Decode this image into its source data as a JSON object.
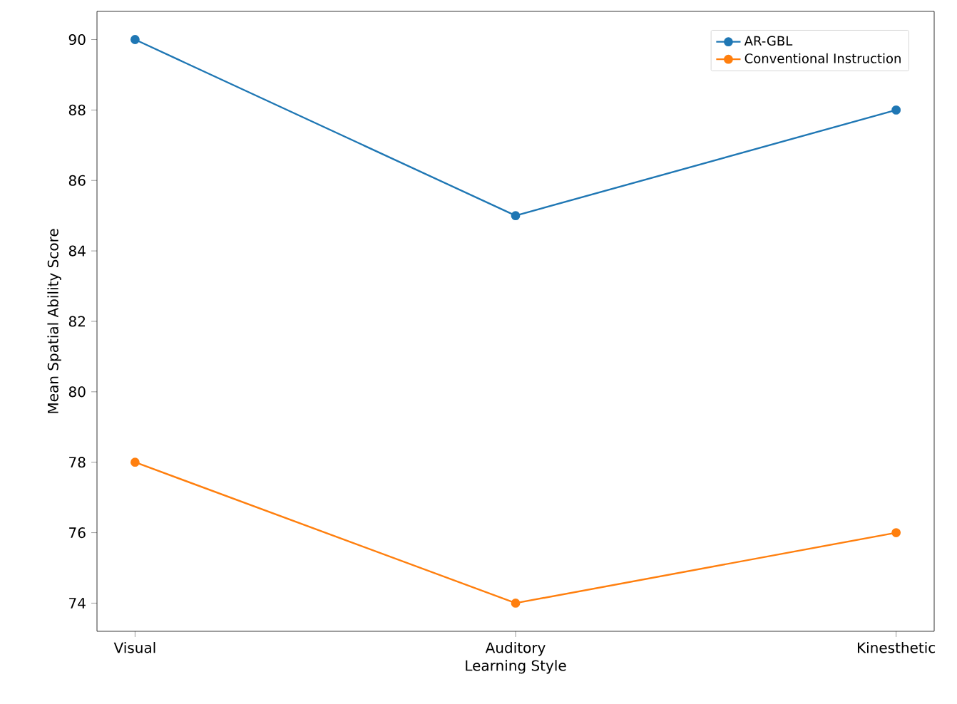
{
  "chart_data": {
    "type": "line",
    "xlabel": "Learning Style",
    "ylabel": "Mean Spatial Ability Score",
    "categories": [
      "Visual",
      "Auditory",
      "Kinesthetic"
    ],
    "series": [
      {
        "name": "AR-GBL",
        "color": "#1f77b4",
        "values": [
          90,
          85,
          88
        ]
      },
      {
        "name": "Conventional Instruction",
        "color": "#ff7f0e",
        "values": [
          78,
          74,
          76
        ]
      }
    ],
    "ylim": [
      73.2,
      90.8
    ],
    "yticks": [
      74,
      76,
      78,
      80,
      82,
      84,
      86,
      88,
      90
    ],
    "grid": false,
    "legend": "top right",
    "marker": "circle",
    "line_style": "solid"
  }
}
